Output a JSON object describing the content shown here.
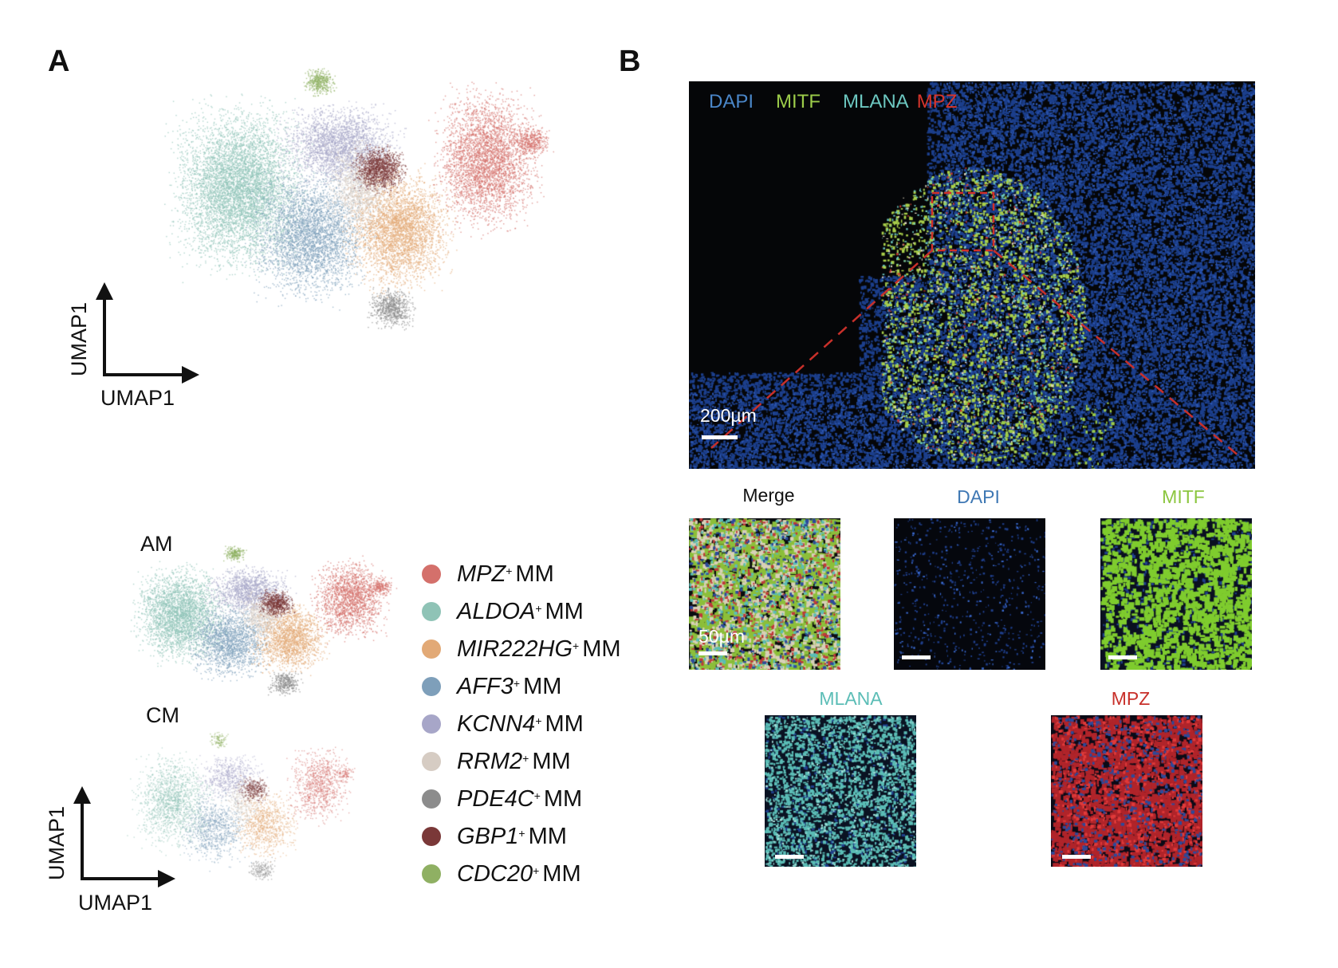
{
  "panels": {
    "a": "A",
    "b": "B"
  },
  "umap_axes": {
    "y_label": "UMAP1",
    "x_label": "UMAP1"
  },
  "subsets": {
    "am": "AM",
    "cm": "CM"
  },
  "legend": [
    {
      "gene": "MPZ",
      "sup": "+",
      "suffix": "MM",
      "color": "#d4706b"
    },
    {
      "gene": "ALDOA",
      "sup": "+",
      "suffix": "MM",
      "color": "#8fc3b6"
    },
    {
      "gene": "MIR222HG",
      "sup": "+",
      "suffix": "MM",
      "color": "#e2a976"
    },
    {
      "gene": "AFF3",
      "sup": "+",
      "suffix": "MM",
      "color": "#7e9fba"
    },
    {
      "gene": "KCNN4",
      "sup": "+",
      "suffix": "MM",
      "color": "#a7a6c8"
    },
    {
      "gene": "RRM2",
      "sup": "+",
      "suffix": "MM",
      "color": "#d6ccc3"
    },
    {
      "gene": "PDE4C",
      "sup": "+",
      "suffix": "MM",
      "color": "#8c8c8c"
    },
    {
      "gene": "GBP1",
      "sup": "+",
      "suffix": "MM",
      "color": "#7a3838"
    },
    {
      "gene": "CDC20",
      "sup": "+",
      "suffix": "MM",
      "color": "#8fb063"
    }
  ],
  "microscopy": {
    "channels": [
      {
        "label": "DAPI",
        "color": "#4a86c8"
      },
      {
        "label": "MITF",
        "color": "#9ccc4a"
      },
      {
        "label": "MLANA",
        "color": "#6cc7c0"
      },
      {
        "label": "MPZ",
        "color": "#d8352c"
      }
    ],
    "overview_scale": "200µm",
    "zoom_scale": "50µm",
    "zoom_panels": [
      {
        "title": "Merge",
        "color": "#111111"
      },
      {
        "title": "DAPI",
        "color": "#3f78b4"
      },
      {
        "title": "MITF",
        "color": "#8cc63f"
      },
      {
        "title": "MLANA",
        "color": "#5bbdb6"
      },
      {
        "title": "MPZ",
        "color": "#c8302a"
      }
    ]
  }
}
